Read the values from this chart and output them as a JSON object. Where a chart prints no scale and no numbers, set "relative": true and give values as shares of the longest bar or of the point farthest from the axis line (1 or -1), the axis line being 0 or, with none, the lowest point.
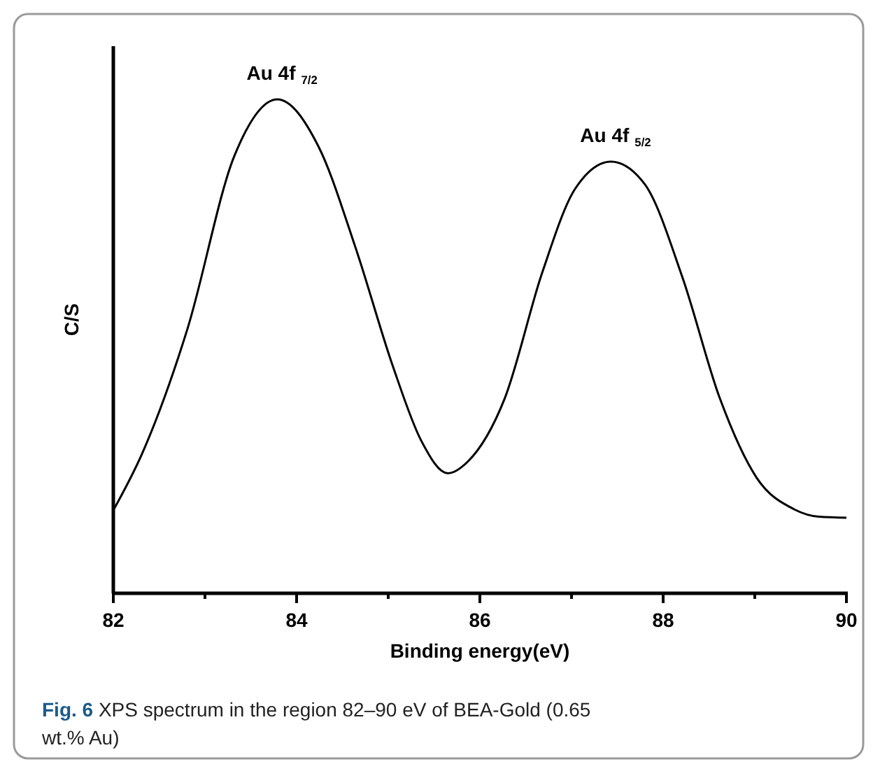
{
  "chart_data": {
    "type": "line",
    "relative": true,
    "xlabel": "Binding energy(eV)",
    "ylabel": "C/S",
    "xlim": [
      82,
      90
    ],
    "xticks": [
      82,
      {
        "value": 83,
        "label": null
      },
      84,
      {
        "value": 85,
        "label": null
      },
      86,
      {
        "value": 87,
        "label": null
      },
      88,
      {
        "value": 89,
        "label": null
      },
      90
    ],
    "x": [
      82,
      82.31,
      82.81,
      83.32,
      83.79,
      84.24,
      84.65,
      85.05,
      85.36,
      85.65,
      85.87,
      86.27,
      86.68,
      87.04,
      87.43,
      87.8,
      88.21,
      88.62,
      89.02,
      89.43,
      89.7,
      90
    ],
    "series": [
      {
        "color": "#000000",
        "values": [
          0.168,
          0.281,
          0.536,
          0.885,
          1,
          0.904,
          0.696,
          0.46,
          0.309,
          0.243,
          0.267,
          0.394,
          0.649,
          0.819,
          0.874,
          0.828,
          0.64,
          0.394,
          0.234,
          0.17,
          0.155,
          0.153
        ]
      }
    ],
    "annotations": [
      {
        "text": "Au 4f$_{7/2}$",
        "x": 83.79,
        "y": 1
      },
      {
        "text": "Au 4f$_{5/2}$",
        "x": 87.43,
        "y": 0.874
      },
      "Fig. 6 XPS spectrum in the region 82–90 eV of BEA-Gold (0.65 wt.% Au)"
    ]
  }
}
